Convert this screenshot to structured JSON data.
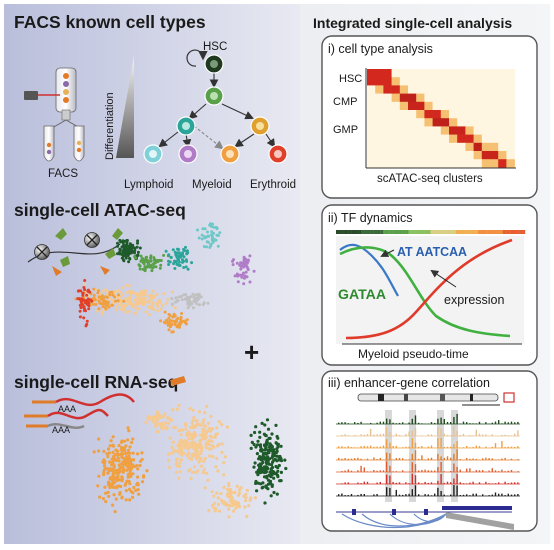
{
  "left": {
    "facs_title": "FACS known cell types",
    "hsc_label": "HSC",
    "differentiation_label": "Differentiation",
    "facs_label": "FACS",
    "lineages": [
      "Lymphoid",
      "Myeloid",
      "Erythroid"
    ],
    "atac_title": "single-cell ATAC-seq",
    "plus": "+",
    "rna_title": "single-cell RNA-seq",
    "aaa_label": "AAA"
  },
  "right": {
    "title": "Integrated single-cell analysis",
    "panel1": {
      "title": "i) cell type analysis",
      "row_labels": [
        "HSC",
        "CMP",
        "GMP"
      ],
      "xlabel": "scATAC-seq clusters"
    },
    "panel2": {
      "title": "ii) TF dynamics",
      "motif1": "AT AATCAA",
      "motif2": "GATAA",
      "expression_label": "expression",
      "xlabel": "Myeloid pseudo-time"
    },
    "panel3": {
      "title": "iii) enhancer-gene correlation"
    }
  },
  "colors": {
    "hsc": "#1f3a1f",
    "myeloid_mid": "#5aa04a",
    "lymphoid": "#6ec8c8",
    "pink_purple": "#b07cc8",
    "myeloid": "#f0a040",
    "erythroid": "#e0402a",
    "peach": "#f6c98f",
    "dark_green": "#1e5a2a"
  }
}
